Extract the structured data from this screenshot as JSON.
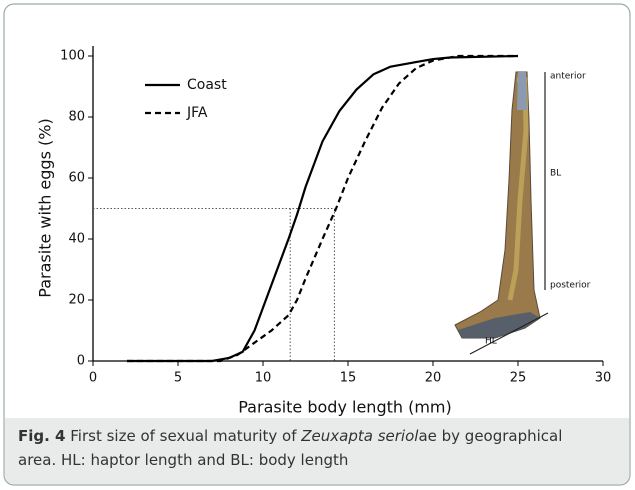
{
  "chart_data": {
    "type": "line",
    "x_label": "Parasite body length (mm)",
    "y_label": "Parasite with eggs (%)",
    "xlim": [
      0,
      30
    ],
    "xticks": [
      0,
      5,
      10,
      15,
      20,
      25,
      30
    ],
    "ylim": [
      0,
      100
    ],
    "yticks": [
      0,
      20,
      40,
      60,
      80,
      100
    ],
    "legend": "upper left",
    "series": [
      {
        "name": "Coast",
        "color": "#000000",
        "style": "solid",
        "x": [
          2,
          7,
          8,
          8.8,
          9.5,
          10.5,
          11.5,
          12,
          12.5,
          13.5,
          14.5,
          15.5,
          16.5,
          17.5,
          19,
          20,
          21,
          25
        ],
        "values": [
          0,
          0,
          1,
          3,
          10,
          25,
          40,
          48,
          57,
          72,
          82,
          89,
          94,
          96.5,
          98,
          99,
          99.5,
          100
        ]
      },
      {
        "name": "JFA",
        "color": "#000000",
        "style": "dashed",
        "x": [
          2,
          7.5,
          8.5,
          9.5,
          10.5,
          11.5,
          12,
          12.5,
          13.5,
          14.3,
          15,
          16,
          17,
          18,
          19,
          20,
          21.5,
          25
        ],
        "values": [
          0,
          0,
          2,
          6,
          10,
          15,
          20,
          27,
          40,
          50,
          60,
          72,
          83,
          91,
          96,
          98.5,
          100,
          100
        ]
      }
    ],
    "reference_lines": {
      "y": 50,
      "x": [
        11.6,
        14.2
      ]
    },
    "annotations": {
      "anterior": "anterior",
      "body": "BL",
      "posterior": "posterior",
      "haptor": "HL"
    }
  },
  "caption": {
    "label": "Fig. 4",
    "text": "First size of sexual maturity of",
    "species": "Zeuxapta seriol",
    "species_suffix": "ae by geographical",
    "line2": "area. HL: haptor length and BL: body length"
  }
}
